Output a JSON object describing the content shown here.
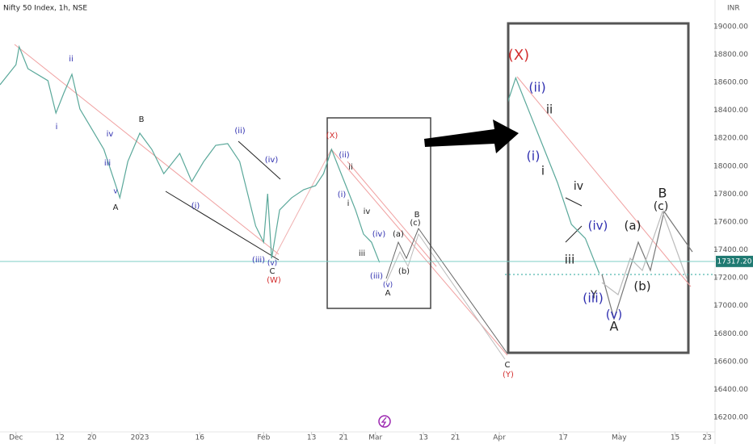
{
  "chart_data": {
    "type": "line",
    "title": "Nifty 50 Index, 1h, NSE",
    "unit": "INR",
    "color": "#5aa89a",
    "x": [
      -4,
      0,
      0.8,
      3,
      8,
      10,
      12,
      14,
      16,
      19,
      22,
      25,
      26,
      28,
      31,
      34,
      37,
      41,
      44,
      47,
      50,
      53,
      56,
      58,
      60,
      62,
      63,
      64,
      66,
      69,
      72,
      75,
      77,
      79,
      81,
      83,
      85,
      87,
      89,
      91
    ],
    "values": [
      18583,
      18727,
      18855,
      18698,
      18612,
      18380,
      18525,
      18658,
      18409,
      18265,
      18120,
      17860,
      17773,
      18033,
      18236,
      18120,
      17946,
      18091,
      17889,
      18033,
      18149,
      18161,
      18033,
      17802,
      17571,
      17455,
      17802,
      17339,
      17686,
      17773,
      17831,
      17860,
      17946,
      18120,
      17975,
      17831,
      17686,
      17513,
      17455,
      17310
    ],
    "xlim": [
      -4,
      175
    ],
    "ylim": [
      16125,
      19190
    ],
    "xticks": [
      {
        "value": 0,
        "label": "Dec"
      },
      {
        "value": 11,
        "label": "12"
      },
      {
        "value": 19,
        "label": "20"
      },
      {
        "value": 31,
        "label": "2023"
      },
      {
        "value": 46,
        "label": "16"
      },
      {
        "value": 62,
        "label": "Feb"
      },
      {
        "value": 74,
        "label": "13"
      },
      {
        "value": 82,
        "label": "21"
      },
      {
        "value": 90,
        "label": "Mar"
      },
      {
        "value": 102,
        "label": "13"
      },
      {
        "value": 110,
        "label": "21"
      },
      {
        "value": 121,
        "label": "Apr"
      },
      {
        "value": 137,
        "label": "17"
      },
      {
        "value": 151,
        "label": "May"
      },
      {
        "value": 165,
        "label": "15"
      },
      {
        "value": 173,
        "label": "23"
      }
    ],
    "yticks": [
      {
        "value": 19000,
        "label": "19000.00"
      },
      {
        "value": 18800,
        "label": "18800.00"
      },
      {
        "value": 18600,
        "label": "18600.00"
      },
      {
        "value": 18400,
        "label": "18400.00"
      },
      {
        "value": 18200,
        "label": "18200.00"
      },
      {
        "value": 18000,
        "label": "18000.00"
      },
      {
        "value": 17800,
        "label": "17800.00"
      },
      {
        "value": 17600,
        "label": "17600.00"
      },
      {
        "value": 17400,
        "label": "17400.00"
      },
      {
        "value": 17200,
        "label": "17200.00"
      },
      {
        "value": 17000,
        "label": "17000.00"
      },
      {
        "value": 16800,
        "label": "16800.00"
      },
      {
        "value": 16600,
        "label": "16600.00"
      },
      {
        "value": 16400,
        "label": "16400.00"
      },
      {
        "value": 16200,
        "label": "16200.00"
      }
    ],
    "last_price": {
      "value": 17317.2,
      "label": "17317.20"
    },
    "annotations": [
      {
        "text": "ii",
        "color": "#3030b0"
      },
      {
        "text": "i",
        "color": "#3030b0"
      },
      {
        "text": "iv",
        "color": "#3030b0"
      },
      {
        "text": "iii",
        "color": "#3030b0"
      },
      {
        "text": "v",
        "color": "#3030b0"
      },
      {
        "text": "A",
        "color": "#222222"
      },
      {
        "text": "B",
        "color": "#222222"
      },
      {
        "text": "(i)",
        "color": "#3030b0"
      },
      {
        "text": "(ii)",
        "color": "#3030b0"
      },
      {
        "text": "(iv)",
        "color": "#3030b0"
      },
      {
        "text": "(iii)",
        "color": "#3030b0"
      },
      {
        "text": "(v)",
        "color": "#3030b0"
      },
      {
        "text": "C",
        "color": "#222222"
      },
      {
        "text": "(W)",
        "color": "#d32f2f"
      },
      {
        "text": "(X)",
        "color": "#d32f2f"
      },
      {
        "text": "(ii)",
        "color": "#3030b0"
      },
      {
        "text": "ii",
        "color": "#222222"
      },
      {
        "text": "(i)",
        "color": "#3030b0"
      },
      {
        "text": "i",
        "color": "#222222"
      },
      {
        "text": "iv",
        "color": "#222222"
      },
      {
        "text": "(iv)",
        "color": "#3030b0"
      },
      {
        "text": "iii",
        "color": "#222222"
      },
      {
        "text": "(iii)",
        "color": "#3030b0"
      },
      {
        "text": "(v)",
        "color": "#3030b0"
      },
      {
        "text": "A",
        "color": "#222222"
      },
      {
        "text": "(a)",
        "color": "#222222"
      },
      {
        "text": "(b)",
        "color": "#222222"
      },
      {
        "text": "B",
        "color": "#222222"
      },
      {
        "text": "(c)",
        "color": "#222222"
      },
      {
        "text": "C",
        "color": "#222222"
      },
      {
        "text": "(Y)",
        "color": "#d32f2f"
      },
      {
        "text": "(X)",
        "color": "#d32f2f"
      },
      {
        "text": "(ii)",
        "color": "#3030b0"
      },
      {
        "text": "ii",
        "color": "#222222"
      },
      {
        "text": "(i)",
        "color": "#3030b0"
      },
      {
        "text": "i",
        "color": "#222222"
      },
      {
        "text": "iv",
        "color": "#222222"
      },
      {
        "text": "(iv)",
        "color": "#3030b0"
      },
      {
        "text": "iii",
        "color": "#222222"
      },
      {
        "text": "Y",
        "color": "#222222"
      },
      {
        "text": "(iii)",
        "color": "#3030b0"
      },
      {
        "text": "(v)",
        "color": "#3030b0"
      },
      {
        "text": "A",
        "color": "#222222"
      },
      {
        "text": "(a)",
        "color": "#222222"
      },
      {
        "text": "(b)",
        "color": "#222222"
      },
      {
        "text": "B",
        "color": "#222222"
      },
      {
        "text": "(c)",
        "color": "#222222"
      }
    ]
  }
}
